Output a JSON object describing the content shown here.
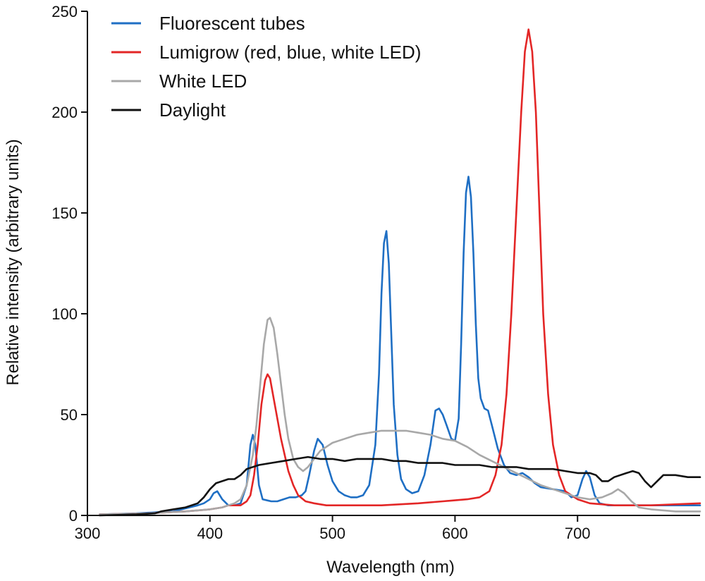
{
  "chart_data": {
    "type": "line",
    "title": "",
    "xlabel": "Wavelength (nm)",
    "ylabel": "Relative intensity (arbitrary units)",
    "xlim": [
      300,
      800
    ],
    "ylim": [
      0,
      250
    ],
    "xticks": [
      300,
      400,
      500,
      600,
      700
    ],
    "yticks": [
      0,
      50,
      100,
      150,
      200,
      250
    ],
    "legend_position": "top-left",
    "grid": false,
    "series": [
      {
        "name": "Fluorescent tubes",
        "color": "#1f6fc4",
        "points": [
          [
            310,
            0.5
          ],
          [
            340,
            1
          ],
          [
            370,
            2
          ],
          [
            390,
            5
          ],
          [
            395,
            6
          ],
          [
            400,
            8
          ],
          [
            403,
            11
          ],
          [
            406,
            12
          ],
          [
            410,
            8
          ],
          [
            415,
            5
          ],
          [
            420,
            5
          ],
          [
            425,
            6
          ],
          [
            430,
            15
          ],
          [
            433,
            35
          ],
          [
            435,
            40
          ],
          [
            437,
            35
          ],
          [
            440,
            15
          ],
          [
            443,
            8
          ],
          [
            450,
            7
          ],
          [
            455,
            7
          ],
          [
            460,
            8
          ],
          [
            465,
            9
          ],
          [
            470,
            9
          ],
          [
            475,
            10
          ],
          [
            478,
            12
          ],
          [
            481,
            20
          ],
          [
            485,
            32
          ],
          [
            488,
            38
          ],
          [
            492,
            35
          ],
          [
            496,
            25
          ],
          [
            500,
            17
          ],
          [
            505,
            12
          ],
          [
            510,
            10
          ],
          [
            515,
            9
          ],
          [
            520,
            9
          ],
          [
            525,
            10
          ],
          [
            530,
            15
          ],
          [
            535,
            35
          ],
          [
            538,
            70
          ],
          [
            540,
            110
          ],
          [
            542,
            135
          ],
          [
            544,
            141
          ],
          [
            546,
            125
          ],
          [
            548,
            90
          ],
          [
            550,
            55
          ],
          [
            553,
            30
          ],
          [
            556,
            18
          ],
          [
            560,
            13
          ],
          [
            565,
            11
          ],
          [
            570,
            12
          ],
          [
            575,
            20
          ],
          [
            580,
            35
          ],
          [
            584,
            52
          ],
          [
            587,
            53
          ],
          [
            590,
            50
          ],
          [
            593,
            45
          ],
          [
            597,
            38
          ],
          [
            600,
            37
          ],
          [
            603,
            48
          ],
          [
            605,
            85
          ],
          [
            607,
            130
          ],
          [
            609,
            160
          ],
          [
            611,
            168
          ],
          [
            613,
            158
          ],
          [
            615,
            130
          ],
          [
            617,
            95
          ],
          [
            619,
            68
          ],
          [
            621,
            58
          ],
          [
            624,
            53
          ],
          [
            627,
            52
          ],
          [
            630,
            45
          ],
          [
            635,
            33
          ],
          [
            640,
            25
          ],
          [
            645,
            21
          ],
          [
            650,
            20
          ],
          [
            655,
            21
          ],
          [
            660,
            19
          ],
          [
            665,
            16
          ],
          [
            670,
            14
          ],
          [
            680,
            13
          ],
          [
            690,
            12
          ],
          [
            695,
            9
          ],
          [
            700,
            10
          ],
          [
            704,
            18
          ],
          [
            707,
            22
          ],
          [
            710,
            19
          ],
          [
            714,
            10
          ],
          [
            718,
            6
          ],
          [
            725,
            5
          ],
          [
            740,
            5
          ],
          [
            760,
            5
          ],
          [
            780,
            5
          ],
          [
            800,
            5
          ]
        ]
      },
      {
        "name": "Lumigrow (red, blue, white LED)",
        "color": "#e32626",
        "points": [
          [
            310,
            0.5
          ],
          [
            350,
            1
          ],
          [
            380,
            2
          ],
          [
            400,
            3
          ],
          [
            410,
            4
          ],
          [
            415,
            5
          ],
          [
            420,
            5
          ],
          [
            425,
            5
          ],
          [
            430,
            7
          ],
          [
            433,
            10
          ],
          [
            436,
            20
          ],
          [
            439,
            35
          ],
          [
            442,
            55
          ],
          [
            445,
            67
          ],
          [
            447,
            70
          ],
          [
            449,
            68
          ],
          [
            452,
            58
          ],
          [
            455,
            48
          ],
          [
            458,
            38
          ],
          [
            461,
            30
          ],
          [
            464,
            22
          ],
          [
            468,
            15
          ],
          [
            472,
            10
          ],
          [
            478,
            7
          ],
          [
            485,
            6
          ],
          [
            495,
            5
          ],
          [
            510,
            5
          ],
          [
            540,
            5
          ],
          [
            570,
            6
          ],
          [
            590,
            7
          ],
          [
            610,
            8
          ],
          [
            620,
            9
          ],
          [
            628,
            12
          ],
          [
            633,
            20
          ],
          [
            638,
            35
          ],
          [
            642,
            60
          ],
          [
            646,
            100
          ],
          [
            650,
            150
          ],
          [
            654,
            200
          ],
          [
            657,
            230
          ],
          [
            660,
            241
          ],
          [
            663,
            230
          ],
          [
            666,
            200
          ],
          [
            669,
            150
          ],
          [
            672,
            100
          ],
          [
            676,
            60
          ],
          [
            680,
            35
          ],
          [
            685,
            20
          ],
          [
            690,
            12
          ],
          [
            700,
            8
          ],
          [
            710,
            6
          ],
          [
            730,
            5
          ],
          [
            760,
            5
          ],
          [
            800,
            6
          ]
        ]
      },
      {
        "name": "White LED",
        "color": "#a8a8a8",
        "points": [
          [
            310,
            0.5
          ],
          [
            350,
            1
          ],
          [
            380,
            2
          ],
          [
            400,
            3
          ],
          [
            410,
            4
          ],
          [
            415,
            5
          ],
          [
            420,
            6
          ],
          [
            425,
            8
          ],
          [
            430,
            15
          ],
          [
            435,
            30
          ],
          [
            438,
            45
          ],
          [
            441,
            65
          ],
          [
            444,
            85
          ],
          [
            447,
            97
          ],
          [
            449,
            98
          ],
          [
            452,
            93
          ],
          [
            455,
            80
          ],
          [
            458,
            65
          ],
          [
            461,
            50
          ],
          [
            464,
            38
          ],
          [
            468,
            28
          ],
          [
            472,
            24
          ],
          [
            476,
            22
          ],
          [
            480,
            24
          ],
          [
            485,
            28
          ],
          [
            490,
            32
          ],
          [
            500,
            36
          ],
          [
            510,
            38
          ],
          [
            520,
            40
          ],
          [
            530,
            41
          ],
          [
            540,
            42
          ],
          [
            550,
            42
          ],
          [
            560,
            42
          ],
          [
            570,
            41
          ],
          [
            580,
            40
          ],
          [
            590,
            38
          ],
          [
            600,
            37
          ],
          [
            610,
            34
          ],
          [
            620,
            30
          ],
          [
            630,
            27
          ],
          [
            640,
            24
          ],
          [
            650,
            21
          ],
          [
            660,
            18
          ],
          [
            670,
            15
          ],
          [
            680,
            13
          ],
          [
            690,
            11
          ],
          [
            700,
            9
          ],
          [
            710,
            8
          ],
          [
            720,
            9
          ],
          [
            728,
            11
          ],
          [
            733,
            13
          ],
          [
            738,
            11
          ],
          [
            744,
            7
          ],
          [
            750,
            4
          ],
          [
            760,
            3
          ],
          [
            780,
            2
          ],
          [
            800,
            2
          ]
        ]
      },
      {
        "name": "Daylight",
        "color": "#111111",
        "points": [
          [
            310,
            0
          ],
          [
            340,
            0.5
          ],
          [
            355,
            1
          ],
          [
            360,
            2
          ],
          [
            370,
            3
          ],
          [
            380,
            4
          ],
          [
            390,
            6
          ],
          [
            395,
            9
          ],
          [
            400,
            13
          ],
          [
            405,
            16
          ],
          [
            410,
            17
          ],
          [
            415,
            18
          ],
          [
            420,
            18
          ],
          [
            425,
            20
          ],
          [
            430,
            23
          ],
          [
            440,
            25
          ],
          [
            450,
            26
          ],
          [
            460,
            27
          ],
          [
            470,
            28
          ],
          [
            480,
            29
          ],
          [
            490,
            28
          ],
          [
            500,
            28
          ],
          [
            510,
            27
          ],
          [
            520,
            28
          ],
          [
            530,
            28
          ],
          [
            540,
            28
          ],
          [
            550,
            27
          ],
          [
            560,
            27
          ],
          [
            570,
            26
          ],
          [
            580,
            26
          ],
          [
            590,
            26
          ],
          [
            600,
            25
          ],
          [
            610,
            25
          ],
          [
            620,
            25
          ],
          [
            630,
            24
          ],
          [
            640,
            24
          ],
          [
            650,
            24
          ],
          [
            660,
            23
          ],
          [
            670,
            23
          ],
          [
            680,
            23
          ],
          [
            690,
            22
          ],
          [
            700,
            21
          ],
          [
            710,
            21
          ],
          [
            715,
            20
          ],
          [
            720,
            17
          ],
          [
            725,
            17
          ],
          [
            730,
            19
          ],
          [
            740,
            21
          ],
          [
            745,
            22
          ],
          [
            750,
            21
          ],
          [
            755,
            17
          ],
          [
            760,
            14
          ],
          [
            765,
            17
          ],
          [
            770,
            20
          ],
          [
            780,
            20
          ],
          [
            790,
            19
          ],
          [
            800,
            19
          ]
        ]
      }
    ]
  }
}
